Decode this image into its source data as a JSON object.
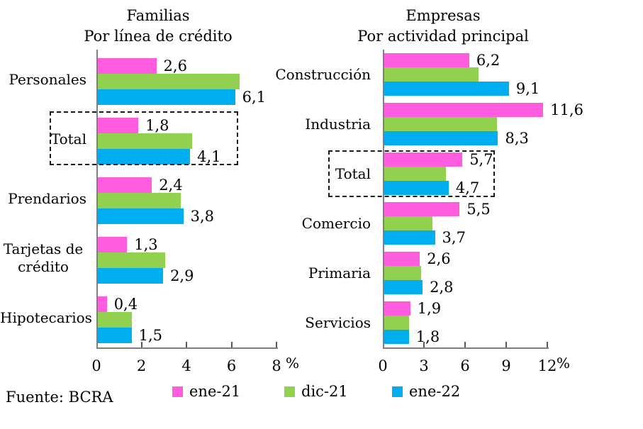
{
  "page": {
    "background": "#FFFFFF"
  },
  "footer": {
    "source": "Fuente: BCRA"
  },
  "legend": {
    "position": "bottom",
    "items": [
      {
        "label": "ene-21",
        "color": "#FF5CE0"
      },
      {
        "label": "dic-21",
        "color": "#92D050"
      },
      {
        "label": "ene-22",
        "color": "#00AEEF"
      }
    ]
  },
  "chart_data": [
    {
      "type": "bar",
      "orientation": "horizontal",
      "title": "Familias",
      "subtitle": "Por línea de crédito",
      "unit": "%",
      "xlim": [
        0,
        8
      ],
      "xticks": [
        0,
        2,
        4,
        6,
        8
      ],
      "grid": false,
      "highlighted_category": "Total",
      "categories": [
        "Personales",
        "Total",
        "Prendarios",
        "Tarjetas de crédito",
        "Hipotecarios"
      ],
      "series": [
        {
          "name": "ene-21",
          "color": "#FF5CE0",
          "values": [
            2.6,
            1.8,
            2.4,
            1.3,
            0.4
          ],
          "labels": [
            "2,6",
            "1,8",
            "2,4",
            "1,3",
            "0,4"
          ]
        },
        {
          "name": "dic-21",
          "color": "#92D050",
          "values": [
            6.3,
            4.2,
            3.7,
            3.0,
            1.5
          ],
          "labels": [
            "",
            "",
            "",
            "",
            ""
          ]
        },
        {
          "name": "ene-22",
          "color": "#00AEEF",
          "values": [
            6.1,
            4.1,
            3.8,
            2.9,
            1.5
          ],
          "labels": [
            "6,1",
            "4,1",
            "3,8",
            "2,9",
            "1,5"
          ]
        }
      ]
    },
    {
      "type": "bar",
      "orientation": "horizontal",
      "title": "Empresas",
      "subtitle": "Por actividad principal",
      "unit": "%",
      "xlim": [
        0,
        12
      ],
      "xticks": [
        0,
        3,
        6,
        9,
        12
      ],
      "grid": false,
      "highlighted_category": "Total",
      "categories": [
        "Construcción",
        "Industria",
        "Total",
        "Comercio",
        "Primaria",
        "Servicios"
      ],
      "series": [
        {
          "name": "ene-21",
          "color": "#FF5CE0",
          "values": [
            6.2,
            11.6,
            5.7,
            5.5,
            2.6,
            1.9
          ],
          "labels": [
            "6,2",
            "11,6",
            "5,7",
            "5,5",
            "2,6",
            "1,9"
          ]
        },
        {
          "name": "dic-21",
          "color": "#92D050",
          "values": [
            6.9,
            8.2,
            4.5,
            3.5,
            2.7,
            1.8
          ],
          "labels": [
            "",
            "",
            "",
            "",
            "",
            ""
          ]
        },
        {
          "name": "ene-22",
          "color": "#00AEEF",
          "values": [
            9.1,
            8.3,
            4.7,
            3.7,
            2.8,
            1.8
          ],
          "labels": [
            "9,1",
            "8,3",
            "4,7",
            "3,7",
            "2,8",
            "1,8"
          ]
        }
      ]
    }
  ]
}
